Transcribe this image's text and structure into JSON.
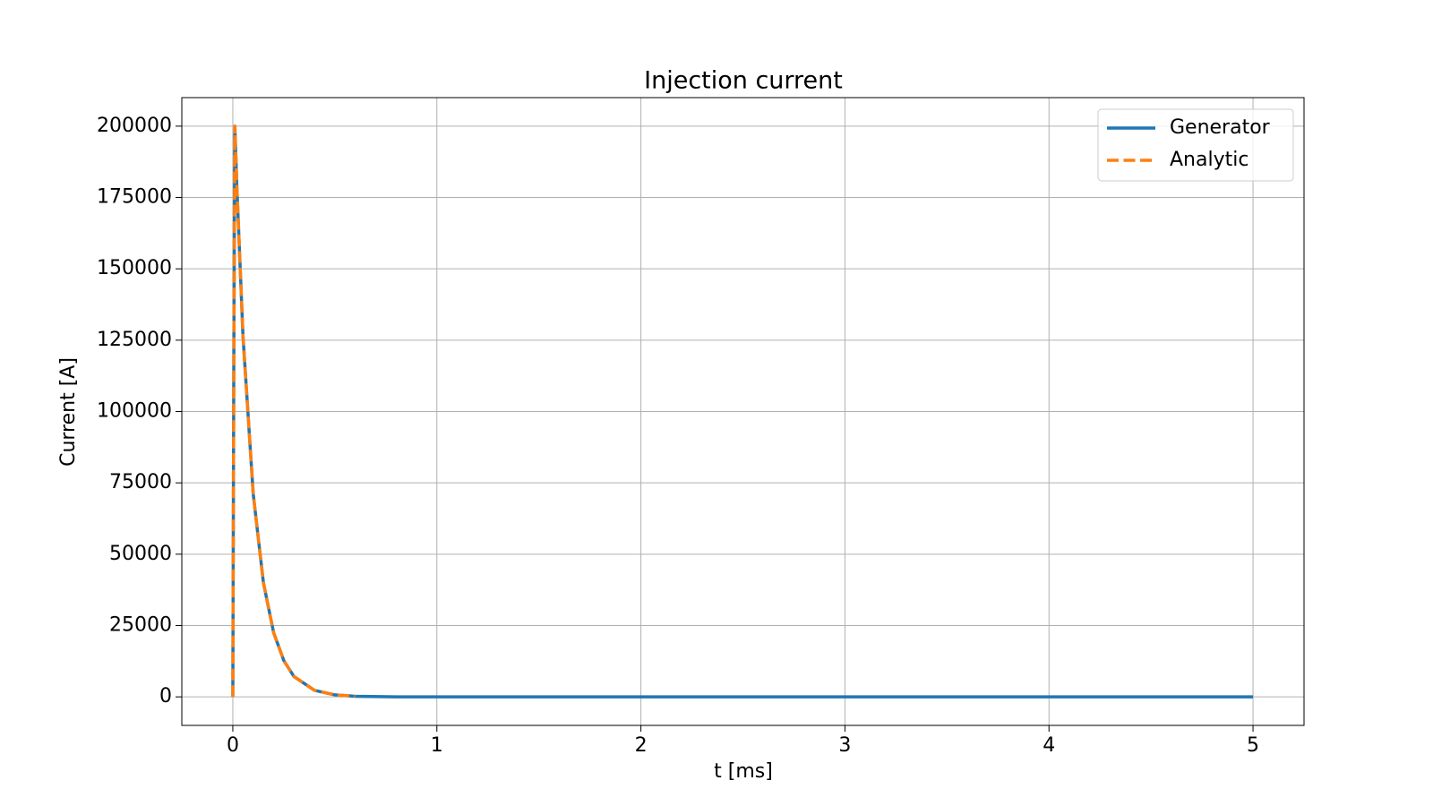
{
  "chart_data": {
    "type": "line",
    "title": "Injection current",
    "x_label": "t [ms]",
    "y_label": "Current [A]",
    "x": [
      0,
      0.005,
      0.01,
      0.02,
      0.05,
      0.1,
      0.15,
      0.2,
      0.25,
      0.3,
      0.4,
      0.5,
      0.6,
      0.8,
      1,
      2,
      3,
      4,
      5
    ],
    "series": [
      {
        "name": "Generator",
        "color": "#1f77b4",
        "dash": "solid",
        "values": [
          0,
          120000,
          200000,
          178300,
          126200,
          71100,
          40000,
          22500,
          12700,
          7100,
          2300,
          700,
          200,
          0,
          0,
          0,
          0,
          0,
          0
        ]
      },
      {
        "name": "Analytic",
        "color": "#ff7f0e",
        "dash": "dashed",
        "values": [
          0,
          120000,
          200000,
          178300,
          126200,
          71100,
          40000,
          22500,
          12700,
          7100,
          2300,
          700,
          200,
          null,
          null,
          null,
          null,
          null,
          null
        ]
      }
    ],
    "xlim": [
      -0.25,
      5.25
    ],
    "xticks": [
      0,
      1,
      2,
      3,
      4,
      5
    ],
    "ylim": [
      -10000,
      210000
    ],
    "yticks": [
      0,
      25000,
      50000,
      75000,
      100000,
      125000,
      150000,
      175000,
      200000
    ],
    "grid": true,
    "legend": "upper right"
  }
}
